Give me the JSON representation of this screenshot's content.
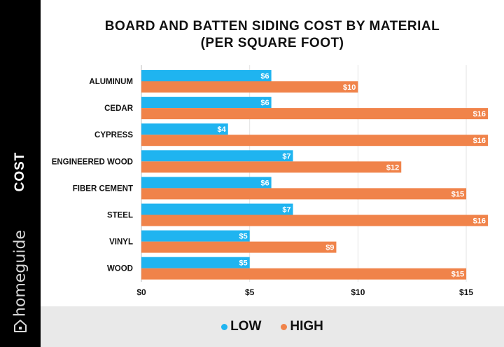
{
  "chart_data": {
    "type": "bar",
    "orientation": "horizontal",
    "title_line1": "BOARD AND BATTEN SIDING COST BY MATERIAL",
    "title_line2": "(PER SQUARE FOOT)",
    "ylabel": "COST",
    "categories": [
      "ALUMINUM",
      "CEDAR",
      "CYPRESS",
      "ENGINEERED WOOD",
      "FIBER CEMENT",
      "STEEL",
      "VINYL",
      "WOOD"
    ],
    "series": [
      {
        "name": "LOW",
        "color": "#1fb4f0",
        "values": [
          6,
          6,
          4,
          7,
          6,
          7,
          5,
          5
        ],
        "labels": [
          "$6",
          "$6",
          "$4",
          "$7",
          "$6",
          "$7",
          "$5",
          "$5"
        ]
      },
      {
        "name": "HIGH",
        "color": "#f0834a",
        "values": [
          10,
          16,
          16,
          12,
          15,
          16,
          9,
          15
        ],
        "labels": [
          "$10",
          "$16",
          "$16",
          "$12",
          "$15",
          "$16",
          "$9",
          "$15"
        ]
      }
    ],
    "xlim": [
      0,
      16
    ],
    "xticks": [
      0,
      5,
      10,
      15
    ],
    "xtick_labels": [
      "$0",
      "$5",
      "$10",
      "$15"
    ],
    "grid": true,
    "legend_position": "bottom"
  },
  "brand": "homeguide",
  "icons": {
    "brand_icon": "house-icon"
  }
}
